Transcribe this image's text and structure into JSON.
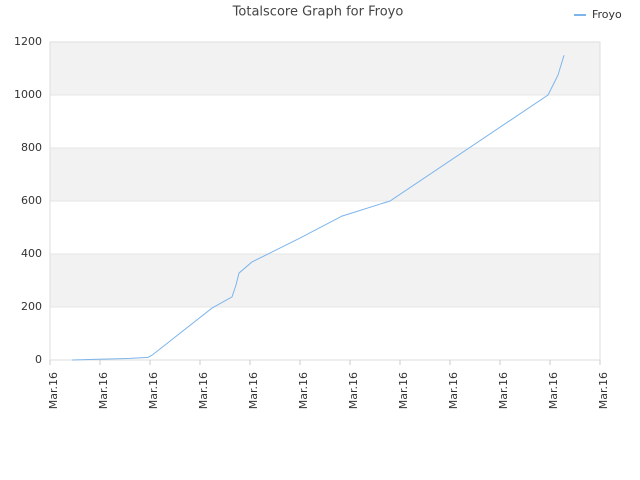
{
  "chart_data": {
    "type": "line",
    "title": "Totalscore Graph for Froyo",
    "x": [
      0.44,
      0.96,
      1.6,
      1.96,
      2.04,
      3.24,
      3.64,
      3.72,
      3.78,
      4.04,
      5.0,
      5.84,
      6.8,
      9.96,
      10.16,
      10.28
    ],
    "series": [
      {
        "name": "Froyo",
        "color": "#7cb5ec",
        "values": [
          0,
          3,
          6,
          10,
          18,
          196,
          238,
          283,
          328,
          370,
          460,
          543,
          600,
          1000,
          1075,
          1150
        ]
      }
    ],
    "xlim": [
      0,
      11
    ],
    "xticks": [
      {
        "value": 0,
        "label": "Mar.16"
      },
      {
        "value": 1,
        "label": "Mar.16"
      },
      {
        "value": 2,
        "label": "Mar.16"
      },
      {
        "value": 3,
        "label": "Mar.16"
      },
      {
        "value": 4,
        "label": "Mar.16"
      },
      {
        "value": 5,
        "label": "Mar.16"
      },
      {
        "value": 6,
        "label": "Mar.16"
      },
      {
        "value": 7,
        "label": "Mar.16"
      },
      {
        "value": 8,
        "label": "Mar.16"
      },
      {
        "value": 9,
        "label": "Mar.16"
      },
      {
        "value": 10,
        "label": "Mar.16"
      },
      {
        "value": 11,
        "label": "Mar.16"
      }
    ],
    "ylim": [
      0,
      1200
    ],
    "yticks": [
      0,
      200,
      400,
      600,
      800,
      1000,
      1200
    ],
    "grid": true,
    "legend": "top-right"
  }
}
